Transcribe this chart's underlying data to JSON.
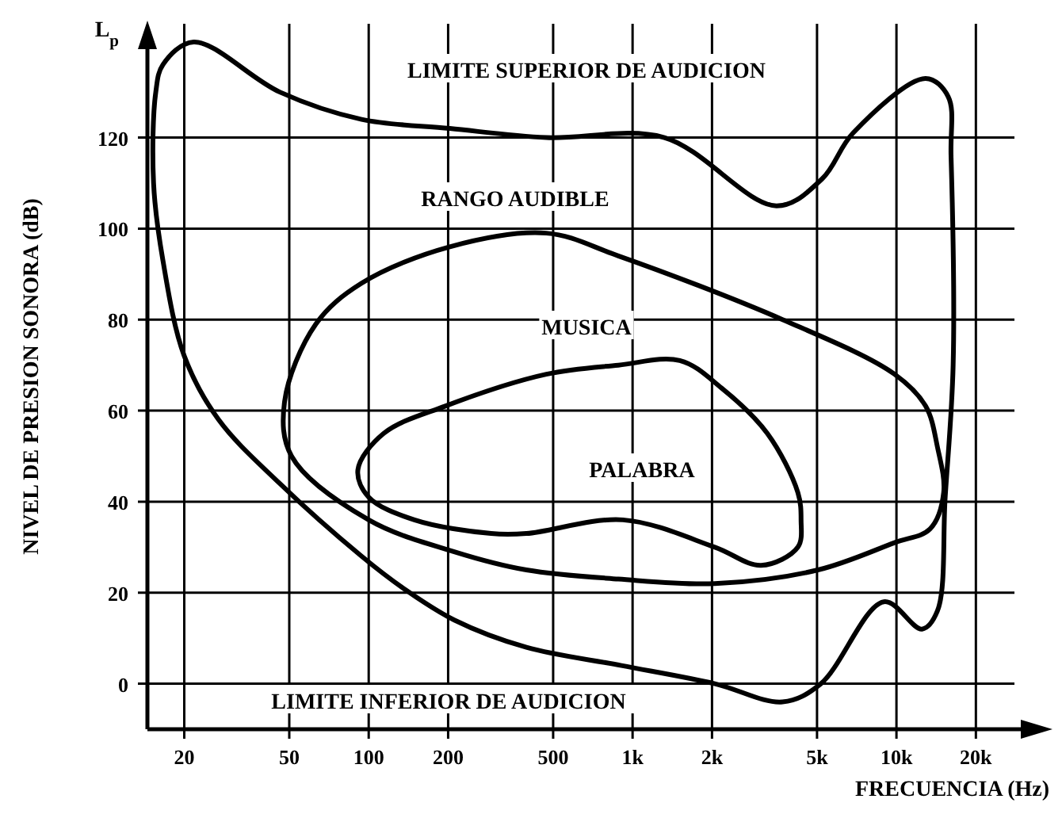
{
  "chart_data": {
    "type": "line",
    "xlabel": "FRECUENCIA  (Hz)",
    "ylabel": "NIVEL DE PRESION SONORA  (dB)",
    "log": "x",
    "xlim": [
      14.5,
      28000
    ],
    "ylim": [
      -10,
      145
    ],
    "xticks": [
      20,
      50,
      100,
      200,
      500,
      {
        "value": 1000,
        "label": "1k"
      },
      {
        "value": 2000,
        "label": "2k"
      },
      {
        "value": 5000,
        "label": "5k"
      },
      {
        "value": 10000,
        "label": "10k"
      },
      {
        "value": 20000,
        "label": "20k"
      }
    ],
    "yticks": [
      0,
      20,
      40,
      60,
      80,
      100,
      120
    ],
    "grid": true,
    "annotations": [
      "L$_{p}$",
      "LIMITE SUPERIOR DE AUDICION",
      "RANGO AUDIBLE",
      "MUSICA",
      "PALABRA",
      "LIMITE INFERIOR DE AUDICION"
    ]
  }
}
